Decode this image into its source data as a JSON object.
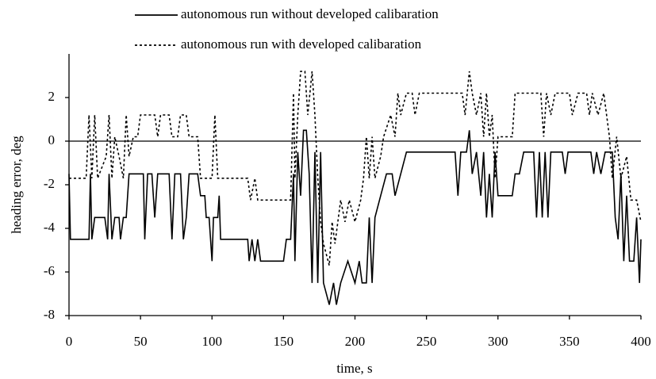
{
  "chart_data": {
    "type": "line",
    "xlabel": "time, s",
    "ylabel": "heading error, deg",
    "xlim": [
      0,
      400
    ],
    "xticks": [
      0,
      50,
      100,
      150,
      200,
      250,
      300,
      350,
      400
    ],
    "ylim": [
      -8,
      4
    ],
    "yticks": [
      -8,
      -6,
      -4,
      -2,
      0,
      2
    ],
    "grid": false,
    "zero_line": true,
    "legend": "top",
    "series": [
      {
        "name": "autonomous run without developed calibaration",
        "color": "#000000",
        "dash": "solid",
        "x": [
          0,
          1,
          14,
          15,
          16,
          18,
          25,
          27,
          28,
          30,
          32,
          35,
          36,
          38,
          40,
          42,
          52,
          53,
          55,
          58,
          60,
          62,
          70,
          72,
          74,
          78,
          80,
          82,
          84,
          90,
          92,
          95,
          96,
          98,
          100,
          101,
          104,
          105,
          106,
          125,
          126,
          128,
          130,
          132,
          134,
          150,
          152,
          155,
          157,
          158,
          160,
          162,
          164,
          166,
          168,
          170,
          172,
          174,
          176,
          178,
          182,
          185,
          187,
          190,
          195,
          200,
          203,
          205,
          208,
          210,
          212,
          214,
          218,
          222,
          226,
          228,
          232,
          236,
          270,
          272,
          274,
          278,
          280,
          282,
          285,
          288,
          290,
          292,
          294,
          296,
          298,
          300,
          310,
          312,
          315,
          318,
          325,
          327,
          329,
          331,
          333,
          335,
          337,
          345,
          347,
          349,
          365,
          367,
          369,
          372,
          375,
          380,
          382,
          384,
          386,
          388,
          390,
          392,
          395,
          397,
          399,
          400
        ],
        "values": [
          -1.5,
          -4.5,
          -4.5,
          -1.5,
          -4.5,
          -3.5,
          -3.5,
          -4.5,
          -1.5,
          -4.5,
          -3.5,
          -3.5,
          -4.5,
          -3.5,
          -3.5,
          -1.5,
          -1.5,
          -4.5,
          -1.5,
          -1.5,
          -3.5,
          -1.5,
          -1.5,
          -4.5,
          -1.5,
          -1.5,
          -4.5,
          -3.5,
          -1.5,
          -1.5,
          -2.5,
          -2.5,
          -3.5,
          -3.5,
          -5.5,
          -3.5,
          -3.5,
          -2.5,
          -4.5,
          -4.5,
          -5.5,
          -4.5,
          -5.5,
          -4.5,
          -5.5,
          -5.5,
          -4.5,
          -4.5,
          -1.5,
          -5.5,
          -0.5,
          -2.5,
          0.5,
          0.5,
          -1.5,
          -6.5,
          -0.5,
          -6.5,
          -0.5,
          -6.5,
          -7.5,
          -6.5,
          -7.5,
          -6.5,
          -5.5,
          -6.5,
          -5.5,
          -6.5,
          -6.5,
          -3.5,
          -6.5,
          -3.5,
          -2.5,
          -1.5,
          -1.5,
          -2.5,
          -1.5,
          -0.5,
          -0.5,
          -2.5,
          -0.5,
          -0.5,
          0.5,
          -1.5,
          -0.5,
          -2.5,
          -0.5,
          -3.5,
          -1.5,
          -3.5,
          -0.5,
          -2.5,
          -2.5,
          -1.5,
          -1.5,
          -0.5,
          -0.5,
          -3.5,
          -0.5,
          -3.5,
          -0.5,
          -3.5,
          -0.5,
          -0.5,
          -1.5,
          -0.5,
          -0.5,
          -1.5,
          -0.5,
          -1.5,
          -0.5,
          -0.5,
          -3.5,
          -4.5,
          -1.5,
          -5.5,
          -2.5,
          -5.5,
          -5.5,
          -3.5,
          -6.5,
          -4.5
        ]
      },
      {
        "name": "autonomous run with developed calibaration",
        "color": "#000000",
        "dash": "dotted",
        "x": [
          0,
          12,
          14,
          16,
          18,
          20,
          26,
          28,
          30,
          32,
          35,
          38,
          40,
          42,
          45,
          48,
          50,
          60,
          62,
          64,
          70,
          72,
          76,
          78,
          82,
          84,
          90,
          92,
          100,
          102,
          104,
          125,
          127,
          130,
          132,
          155,
          157,
          158,
          160,
          162,
          165,
          167,
          170,
          172,
          174,
          176,
          178,
          182,
          184,
          186,
          190,
          193,
          196,
          200,
          204,
          206,
          208,
          210,
          212,
          214,
          218,
          220,
          225,
          228,
          230,
          232,
          236,
          240,
          242,
          245,
          275,
          277,
          280,
          282,
          285,
          288,
          290,
          292,
          294,
          296,
          298,
          300,
          310,
          312,
          330,
          332,
          334,
          337,
          340,
          350,
          352,
          356,
          362,
          364,
          366,
          370,
          374,
          378,
          380,
          383,
          386,
          390,
          393,
          397,
          400
        ],
        "values": [
          -1.7,
          -1.7,
          1.2,
          -1.7,
          1.2,
          -1.7,
          -0.7,
          1.2,
          -1.7,
          0.2,
          -0.7,
          -1.7,
          1.2,
          -0.7,
          0.2,
          0.2,
          1.2,
          1.2,
          0.2,
          1.2,
          1.2,
          0.2,
          0.2,
          1.2,
          1.2,
          0.2,
          0.2,
          -1.7,
          -1.7,
          1.2,
          -1.7,
          -1.7,
          -2.7,
          -1.7,
          -2.7,
          -2.7,
          2.2,
          -1.7,
          1.2,
          3.2,
          3.2,
          1.2,
          3.2,
          1.2,
          -1.7,
          -3.7,
          -4.7,
          -5.7,
          -3.7,
          -4.7,
          -2.7,
          -3.7,
          -2.7,
          -3.7,
          -2.7,
          -1.7,
          0.2,
          -1.7,
          0.2,
          -1.7,
          -0.7,
          0.2,
          1.2,
          0.2,
          2.2,
          1.2,
          2.2,
          2.2,
          1.2,
          2.2,
          2.2,
          1.2,
          3.2,
          2.2,
          1.2,
          2.2,
          0.2,
          2.2,
          0.2,
          1.2,
          -1.7,
          0.2,
          0.2,
          2.2,
          2.2,
          0.2,
          2.2,
          1.2,
          2.2,
          2.2,
          1.2,
          2.2,
          2.2,
          1.2,
          2.2,
          1.2,
          2.2,
          0.2,
          -1.7,
          0.2,
          -1.7,
          -0.7,
          -2.7,
          -2.7,
          -3.7
        ]
      }
    ]
  }
}
